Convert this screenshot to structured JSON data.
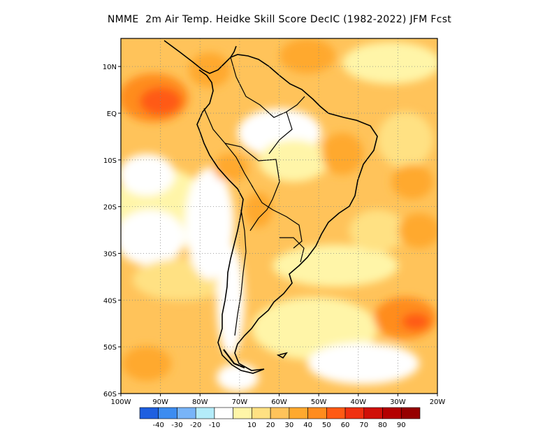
{
  "title": "NMME  2m Air Temp. Heidke Skill Score DecIC (1982-2022) JFM Fcst",
  "map": {
    "projection": "lat-lon",
    "lon_range": [
      -100,
      -20
    ],
    "lat_range": [
      -60,
      16
    ],
    "lat_labels": [
      {
        "lat": 10,
        "text": "10N"
      },
      {
        "lat": 0,
        "text": "EQ"
      },
      {
        "lat": -10,
        "text": "10S"
      },
      {
        "lat": -20,
        "text": "20S"
      },
      {
        "lat": -30,
        "text": "30S"
      },
      {
        "lat": -40,
        "text": "40S"
      },
      {
        "lat": -50,
        "text": "50S"
      },
      {
        "lat": -60,
        "text": "60S"
      }
    ],
    "lon_labels": [
      {
        "lon": -100,
        "text": "100W"
      },
      {
        "lon": -90,
        "text": "90W"
      },
      {
        "lon": -80,
        "text": "80W"
      },
      {
        "lon": -70,
        "text": "70W"
      },
      {
        "lon": -60,
        "text": "60W"
      },
      {
        "lon": -50,
        "text": "50W"
      },
      {
        "lon": -40,
        "text": "40W"
      },
      {
        "lon": -30,
        "text": "30W"
      },
      {
        "lon": -20,
        "text": "20W"
      }
    ],
    "gridlines": true
  },
  "colorbar": {
    "colors": [
      "#1e5fe0",
      "#3c8cf0",
      "#78b4f8",
      "#b4ecfa",
      "#ffffff",
      "#fff5a8",
      "#ffe183",
      "#ffc35a",
      "#ffa92e",
      "#ff8c1e",
      "#ff5a14",
      "#f03010",
      "#d01008",
      "#b40000",
      "#960000"
    ],
    "labels": [
      "-40",
      "-30",
      "-20",
      "-10",
      "10",
      "20",
      "30",
      "40",
      "50",
      "60",
      "70",
      "80",
      "90"
    ]
  }
}
